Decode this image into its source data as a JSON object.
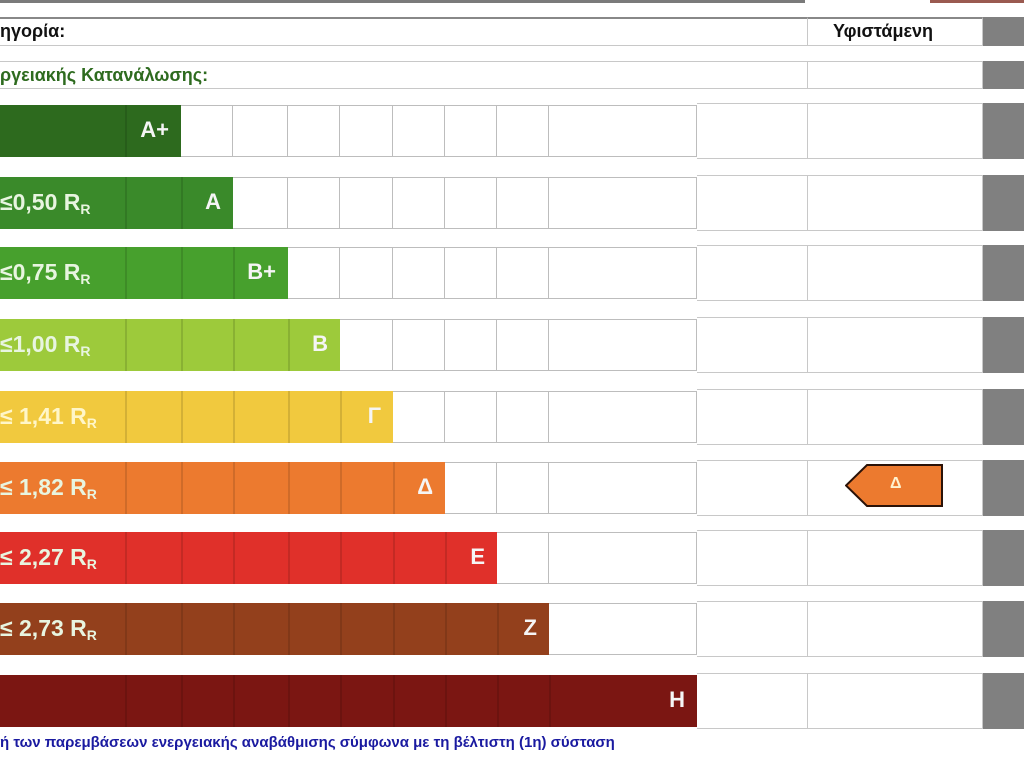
{
  "header": {
    "category_label": "ηγορία:",
    "existing_label": "Υφιστάμενη",
    "consumption_label": "ργειακής Κατανάλωσης:"
  },
  "rows": [
    {
      "grade": "A+",
      "range": "",
      "sub": "",
      "color": "#2d6a1e",
      "cells": 2
    },
    {
      "grade": "A",
      "range": "≤0,50 R",
      "sub": "R",
      "color": "#3a8a2a",
      "cells": 3
    },
    {
      "grade": "B+",
      "range": "≤0,75 R",
      "sub": "R",
      "color": "#47a02d",
      "cells": 4
    },
    {
      "grade": "B",
      "range": "≤1,00 R",
      "sub": "R",
      "color": "#9dca3b",
      "cells": 5
    },
    {
      "grade": "Γ",
      "range": "≤ 1,41 R",
      "sub": "R",
      "color": "#f1c93e",
      "cells": 6
    },
    {
      "grade": "Δ",
      "range": "≤ 1,82 R",
      "sub": "R",
      "color": "#ec7a2f",
      "cells": 7
    },
    {
      "grade": "Ε",
      "range": "≤ 2,27 R",
      "sub": "R",
      "color": "#e0302a",
      "cells": 8
    },
    {
      "grade": "Ζ",
      "range": "≤ 2,73 R",
      "sub": "R",
      "color": "#93401c",
      "cells": 9
    },
    {
      "grade": "Η",
      "range": "",
      "sub": "",
      "color": "#7b1612",
      "cells": 10
    }
  ],
  "existing_rating": {
    "grade": "Δ",
    "row_index": 5,
    "color": "#ec7a2f"
  },
  "footer": "ή των παρεμβάσεων ενεργειακής αναβάθμισης σύμφωνα με τη βέλτιστη (1η) σύσταση"
}
